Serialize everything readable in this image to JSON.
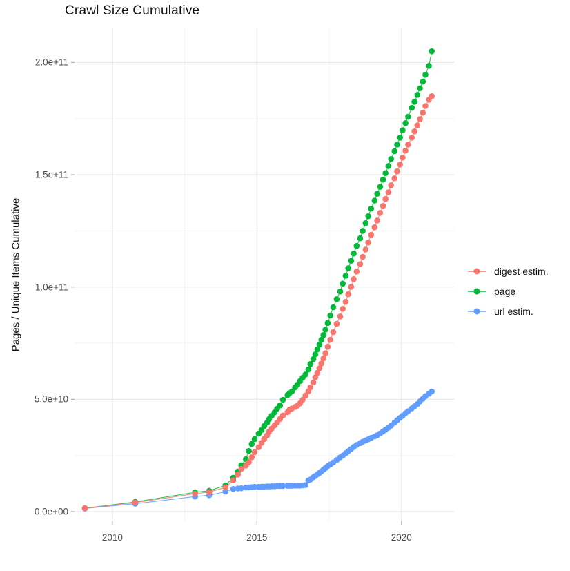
{
  "chart_data": {
    "type": "scatter",
    "title": "Crawl Size Cumulative",
    "xlabel": "",
    "ylabel": "Pages / Unique Items Cumulative",
    "value_unit": "1e9",
    "xlim": [
      2008.69,
      2021.82
    ],
    "ylim": [
      -4.3,
      215.5
    ],
    "grid": "major+minor",
    "legend_position": "right",
    "x_ticks": [
      {
        "v": 2010,
        "label": "2010"
      },
      {
        "v": 2015,
        "label": "2015"
      },
      {
        "v": 2020,
        "label": "2020"
      }
    ],
    "x_minor_ticks": [
      2012.5,
      2017.5
    ],
    "y_ticks": [
      {
        "v": 0,
        "label": "0.0e+00"
      },
      {
        "v": 50,
        "label": "5.0e+10"
      },
      {
        "v": 100,
        "label": "1.0e+11"
      },
      {
        "v": 150,
        "label": "1.5e+11"
      },
      {
        "v": 200,
        "label": "2.0e+11"
      }
    ],
    "y_minor_ticks": [
      25,
      75,
      125,
      175
    ],
    "draw_order": [
      1,
      2,
      0
    ],
    "series": [
      {
        "name": "digest estim.",
        "color": "#F8766D",
        "points": [
          [
            2009.05,
            1.5
          ],
          [
            2010.79,
            4.0
          ],
          [
            2012.86,
            8.0
          ],
          [
            2013.35,
            8.7
          ],
          [
            2013.91,
            10.8
          ],
          [
            2014.18,
            13.9
          ],
          [
            2014.34,
            16.5
          ],
          [
            2014.46,
            19.0
          ],
          [
            2014.62,
            20.5
          ],
          [
            2014.72,
            22.0
          ],
          [
            2014.82,
            24.2
          ],
          [
            2014.92,
            26.5
          ],
          [
            2015.06,
            28.7
          ],
          [
            2015.16,
            30.6
          ],
          [
            2015.25,
            32.3
          ],
          [
            2015.35,
            33.9
          ],
          [
            2015.42,
            35.6
          ],
          [
            2015.51,
            37.0
          ],
          [
            2015.61,
            38.4
          ],
          [
            2015.7,
            39.7
          ],
          [
            2015.8,
            41.3
          ],
          [
            2015.9,
            42.8
          ],
          [
            2016.06,
            44.3
          ],
          [
            2016.13,
            45.4
          ],
          [
            2016.21,
            45.9
          ],
          [
            2016.32,
            46.6
          ],
          [
            2016.4,
            47.2
          ],
          [
            2016.49,
            48.2
          ],
          [
            2016.58,
            49.8
          ],
          [
            2016.68,
            51.7
          ],
          [
            2016.78,
            53.6
          ],
          [
            2016.85,
            55.3
          ],
          [
            2016.95,
            57.5
          ],
          [
            2017.02,
            59.8
          ],
          [
            2017.09,
            61.8
          ],
          [
            2017.16,
            63.8
          ],
          [
            2017.23,
            65.9
          ],
          [
            2017.3,
            68.2
          ],
          [
            2017.37,
            70.5
          ],
          [
            2017.45,
            73.4
          ],
          [
            2017.54,
            76.5
          ],
          [
            2017.64,
            79.9
          ],
          [
            2017.76,
            83.6
          ],
          [
            2017.88,
            86.9
          ],
          [
            2017.97,
            90.3
          ],
          [
            2018.07,
            93.4
          ],
          [
            2018.16,
            96.8
          ],
          [
            2018.26,
            100.1
          ],
          [
            2018.35,
            103.5
          ],
          [
            2018.45,
            106.9
          ],
          [
            2018.57,
            110.2
          ],
          [
            2018.66,
            113.4
          ],
          [
            2018.76,
            116.7
          ],
          [
            2018.85,
            119.8
          ],
          [
            2018.95,
            123.2
          ],
          [
            2019.07,
            126.6
          ],
          [
            2019.16,
            129.6
          ],
          [
            2019.26,
            133.0
          ],
          [
            2019.36,
            136.1
          ],
          [
            2019.45,
            139.2
          ],
          [
            2019.55,
            142.2
          ],
          [
            2019.64,
            145.3
          ],
          [
            2019.76,
            148.4
          ],
          [
            2019.85,
            151.5
          ],
          [
            2019.95,
            154.5
          ],
          [
            2020.04,
            157.6
          ],
          [
            2020.14,
            160.7
          ],
          [
            2020.23,
            163.4
          ],
          [
            2020.36,
            166.5
          ],
          [
            2020.45,
            169.3
          ],
          [
            2020.55,
            172.0
          ],
          [
            2020.64,
            174.8
          ],
          [
            2020.74,
            177.6
          ],
          [
            2020.83,
            180.6
          ],
          [
            2020.95,
            183.4
          ],
          [
            2021.05,
            185.0
          ]
        ]
      },
      {
        "name": "page",
        "color": "#00BA38",
        "points": [
          [
            2009.05,
            1.5
          ],
          [
            2010.79,
            4.3
          ],
          [
            2012.86,
            8.6
          ],
          [
            2013.35,
            9.3
          ],
          [
            2013.91,
            11.7
          ],
          [
            2014.18,
            15.1
          ],
          [
            2014.34,
            17.8
          ],
          [
            2014.46,
            20.6
          ],
          [
            2014.62,
            23.3
          ],
          [
            2014.72,
            27.0
          ],
          [
            2014.82,
            30.1
          ],
          [
            2014.92,
            32.3
          ],
          [
            2015.06,
            34.7
          ],
          [
            2015.16,
            36.3
          ],
          [
            2015.25,
            38.1
          ],
          [
            2015.35,
            39.6
          ],
          [
            2015.42,
            41.2
          ],
          [
            2015.51,
            42.7
          ],
          [
            2015.61,
            44.2
          ],
          [
            2015.7,
            45.8
          ],
          [
            2015.8,
            47.3
          ],
          [
            2015.9,
            49.8
          ],
          [
            2016.06,
            51.9
          ],
          [
            2016.13,
            52.8
          ],
          [
            2016.21,
            53.5
          ],
          [
            2016.32,
            55.3
          ],
          [
            2016.4,
            56.5
          ],
          [
            2016.49,
            58.1
          ],
          [
            2016.58,
            59.6
          ],
          [
            2016.68,
            61.1
          ],
          [
            2016.78,
            63.3
          ],
          [
            2016.85,
            65.7
          ],
          [
            2016.95,
            67.9
          ],
          [
            2017.02,
            70.0
          ],
          [
            2017.09,
            72.2
          ],
          [
            2017.16,
            74.3
          ],
          [
            2017.23,
            76.5
          ],
          [
            2017.3,
            78.6
          ],
          [
            2017.37,
            81.0
          ],
          [
            2017.45,
            84.0
          ],
          [
            2017.54,
            87.3
          ],
          [
            2017.64,
            91.0
          ],
          [
            2017.76,
            94.6
          ],
          [
            2017.88,
            98.0
          ],
          [
            2017.97,
            101.5
          ],
          [
            2018.07,
            105.0
          ],
          [
            2018.16,
            108.4
          ],
          [
            2018.26,
            111.7
          ],
          [
            2018.35,
            114.9
          ],
          [
            2018.45,
            118.3
          ],
          [
            2018.57,
            121.7
          ],
          [
            2018.66,
            125.0
          ],
          [
            2018.76,
            128.4
          ],
          [
            2018.85,
            131.5
          ],
          [
            2018.95,
            134.9
          ],
          [
            2019.07,
            138.5
          ],
          [
            2019.16,
            141.5
          ],
          [
            2019.26,
            144.6
          ],
          [
            2019.36,
            147.8
          ],
          [
            2019.45,
            150.7
          ],
          [
            2019.55,
            153.9
          ],
          [
            2019.64,
            157.0
          ],
          [
            2019.76,
            160.5
          ],
          [
            2019.85,
            163.4
          ],
          [
            2019.95,
            166.5
          ],
          [
            2020.04,
            169.8
          ],
          [
            2020.14,
            173.0
          ],
          [
            2020.23,
            175.8
          ],
          [
            2020.36,
            179.8
          ],
          [
            2020.45,
            182.5
          ],
          [
            2020.55,
            185.6
          ],
          [
            2020.64,
            188.5
          ],
          [
            2020.74,
            191.5
          ],
          [
            2020.83,
            194.5
          ],
          [
            2020.95,
            198.5
          ],
          [
            2021.05,
            205.0
          ]
        ]
      },
      {
        "name": "url estim.",
        "color": "#619CFF",
        "points": [
          [
            2009.05,
            1.4
          ],
          [
            2010.79,
            3.5
          ],
          [
            2012.86,
            6.7
          ],
          [
            2013.35,
            7.3
          ],
          [
            2013.91,
            8.9
          ],
          [
            2014.18,
            10.1
          ],
          [
            2014.34,
            10.3
          ],
          [
            2014.46,
            10.4
          ],
          [
            2014.62,
            10.7
          ],
          [
            2014.72,
            10.8
          ],
          [
            2014.82,
            10.9
          ],
          [
            2014.92,
            11.0
          ],
          [
            2015.06,
            11.0
          ],
          [
            2015.16,
            11.1
          ],
          [
            2015.25,
            11.1
          ],
          [
            2015.35,
            11.2
          ],
          [
            2015.42,
            11.2
          ],
          [
            2015.51,
            11.3
          ],
          [
            2015.61,
            11.3
          ],
          [
            2015.7,
            11.4
          ],
          [
            2015.8,
            11.4
          ],
          [
            2015.9,
            11.4
          ],
          [
            2016.06,
            11.5
          ],
          [
            2016.13,
            11.5
          ],
          [
            2016.21,
            11.5
          ],
          [
            2016.32,
            11.6
          ],
          [
            2016.4,
            11.6
          ],
          [
            2016.49,
            11.6
          ],
          [
            2016.58,
            11.7
          ],
          [
            2016.68,
            11.8
          ],
          [
            2016.78,
            13.9
          ],
          [
            2016.85,
            14.3
          ],
          [
            2016.95,
            15.3
          ],
          [
            2017.02,
            15.9
          ],
          [
            2017.09,
            16.6
          ],
          [
            2017.16,
            17.2
          ],
          [
            2017.23,
            17.9
          ],
          [
            2017.3,
            18.7
          ],
          [
            2017.37,
            19.4
          ],
          [
            2017.45,
            20.3
          ],
          [
            2017.54,
            21.0
          ],
          [
            2017.64,
            21.9
          ],
          [
            2017.76,
            23.0
          ],
          [
            2017.88,
            24.2
          ],
          [
            2017.97,
            24.9
          ],
          [
            2018.07,
            26.0
          ],
          [
            2018.16,
            26.9
          ],
          [
            2018.26,
            27.9
          ],
          [
            2018.35,
            28.8
          ],
          [
            2018.45,
            29.7
          ],
          [
            2018.57,
            30.5
          ],
          [
            2018.66,
            31.1
          ],
          [
            2018.76,
            31.7
          ],
          [
            2018.85,
            32.2
          ],
          [
            2018.95,
            32.8
          ],
          [
            2019.07,
            33.5
          ],
          [
            2019.16,
            34.0
          ],
          [
            2019.26,
            34.8
          ],
          [
            2019.36,
            35.7
          ],
          [
            2019.45,
            36.5
          ],
          [
            2019.55,
            37.4
          ],
          [
            2019.64,
            38.3
          ],
          [
            2019.76,
            39.6
          ],
          [
            2019.85,
            40.7
          ],
          [
            2019.95,
            41.8
          ],
          [
            2020.04,
            42.7
          ],
          [
            2020.14,
            43.8
          ],
          [
            2020.23,
            44.7
          ],
          [
            2020.36,
            46.0
          ],
          [
            2020.45,
            46.9
          ],
          [
            2020.55,
            47.9
          ],
          [
            2020.64,
            49.1
          ],
          [
            2020.74,
            50.3
          ],
          [
            2020.83,
            51.4
          ],
          [
            2020.95,
            52.5
          ],
          [
            2021.05,
            53.5
          ]
        ]
      }
    ],
    "style": {
      "grid_major_color": "#e8e8e8",
      "grid_minor_color": "#f3f3f3",
      "tick_mark_color": "#b3b3b3",
      "tick_label_color": "#4d4d4d",
      "text_color": "#111111",
      "point_radius": 4.3
    }
  }
}
